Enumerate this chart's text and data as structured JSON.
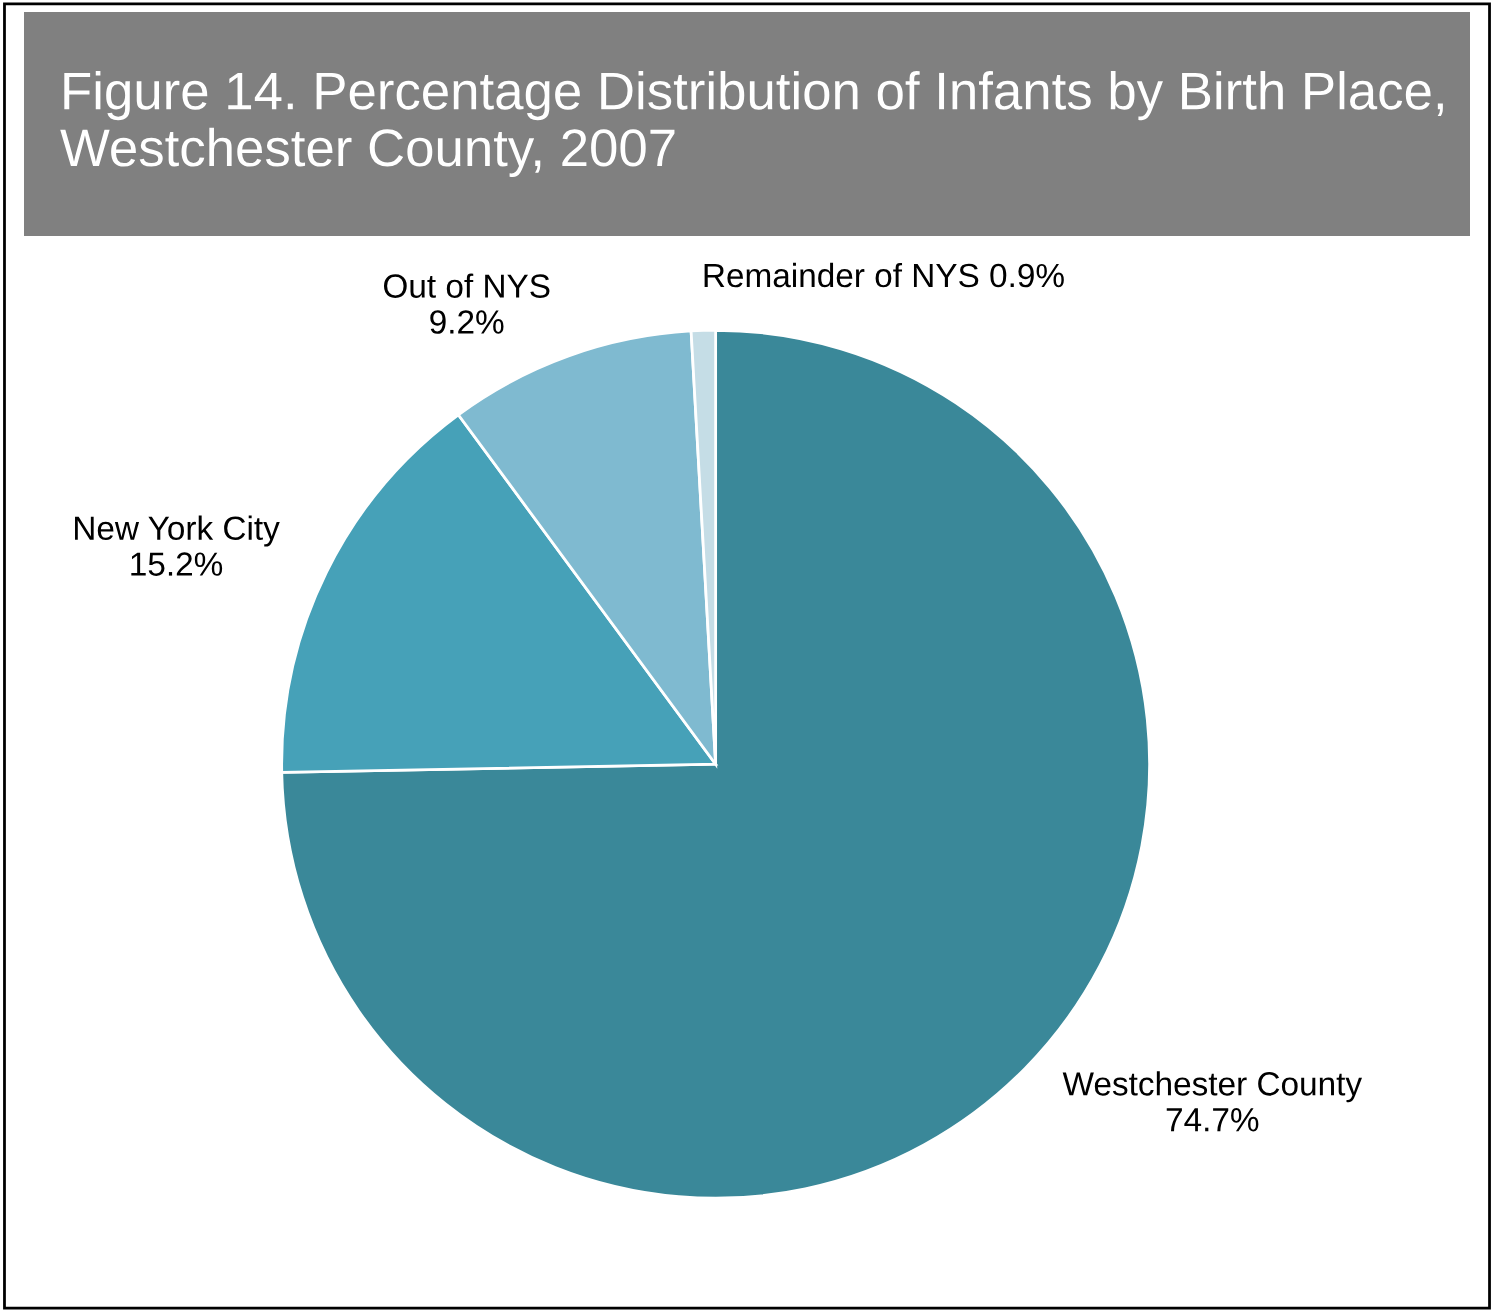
{
  "chart_data": {
    "type": "pie",
    "title": "Figure 14. Percentage Distribution of Infants by Birth Place, Westchester County, 2007",
    "categories": [
      "Westchester County",
      "New York City",
      "Out of NYS",
      "Remainder of NYS"
    ],
    "values": [
      74.7,
      15.2,
      9.2,
      0.9
    ],
    "colors": [
      "#3a8899",
      "#46a1b8",
      "#7fbad0",
      "#c5dde6"
    ],
    "value_labels": [
      "74.7%",
      "15.2%",
      "9.2%",
      "0.9%"
    ]
  }
}
